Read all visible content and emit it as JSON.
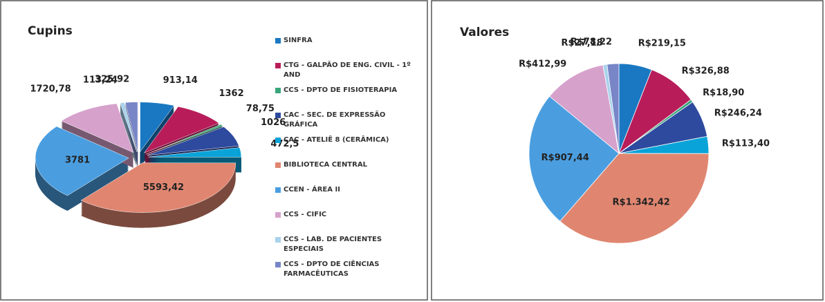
{
  "chart_data": [
    {
      "type": "pie3d",
      "title": "Cupins",
      "categories": [
        "SINFRA",
        "CTG - GALPÃO DE ENG. CIVIL - 1º AND",
        "CCS - DPTO DE FISIOTERAPIA",
        "CAC - SEC. DE EXPRESSÃO GRÁFICA",
        "CAC - ATELIÊ 8 (CERÂMICA)",
        "BIBLIOTECA CENTRAL",
        "CCEN - ÁREA II",
        "CCS - CIFIC",
        "CCS - LAB. DE PACIENTES ESPECIAIS",
        "CCS - DPTO DE CIÊNCIAS FARMACÊUTICAS"
      ],
      "values": [
        913.14,
        1362,
        78.75,
        1026,
        472.5,
        5593.42,
        3781,
        1720.78,
        113.24,
        325.92
      ],
      "value_labels": [
        "913,14",
        "1362",
        "78,75",
        "1026",
        "472,5",
        "5593,42",
        "3781",
        "1720,78",
        "113,24",
        "325,92"
      ],
      "colors": [
        "#1a78c2",
        "#b81d5a",
        "#3aa57a",
        "#2e4a9e",
        "#0aa3d8",
        "#e08670",
        "#4a9ee0",
        "#d6a2cc",
        "#a9d2ec",
        "#7886c8"
      ],
      "legend": "right"
    },
    {
      "type": "pie",
      "title": "Valores",
      "values": [
        219.15,
        326.88,
        18.9,
        246.24,
        113.4,
        1342.42,
        907.44,
        412.99,
        27.18,
        78.22
      ],
      "value_labels": [
        "R$219,15",
        "R$326,88",
        "R$18,90",
        "R$246,24",
        "R$113,40",
        "R$1.342,42",
        "R$907,44",
        "R$412,99",
        "R$27,18",
        "R$78,22"
      ],
      "colors": [
        "#1a78c2",
        "#b81d5a",
        "#3aa57a",
        "#2e4a9e",
        "#0aa3d8",
        "#e08670",
        "#4a9ee0",
        "#d6a2cc",
        "#a9d2ec",
        "#7886c8"
      ]
    }
  ]
}
